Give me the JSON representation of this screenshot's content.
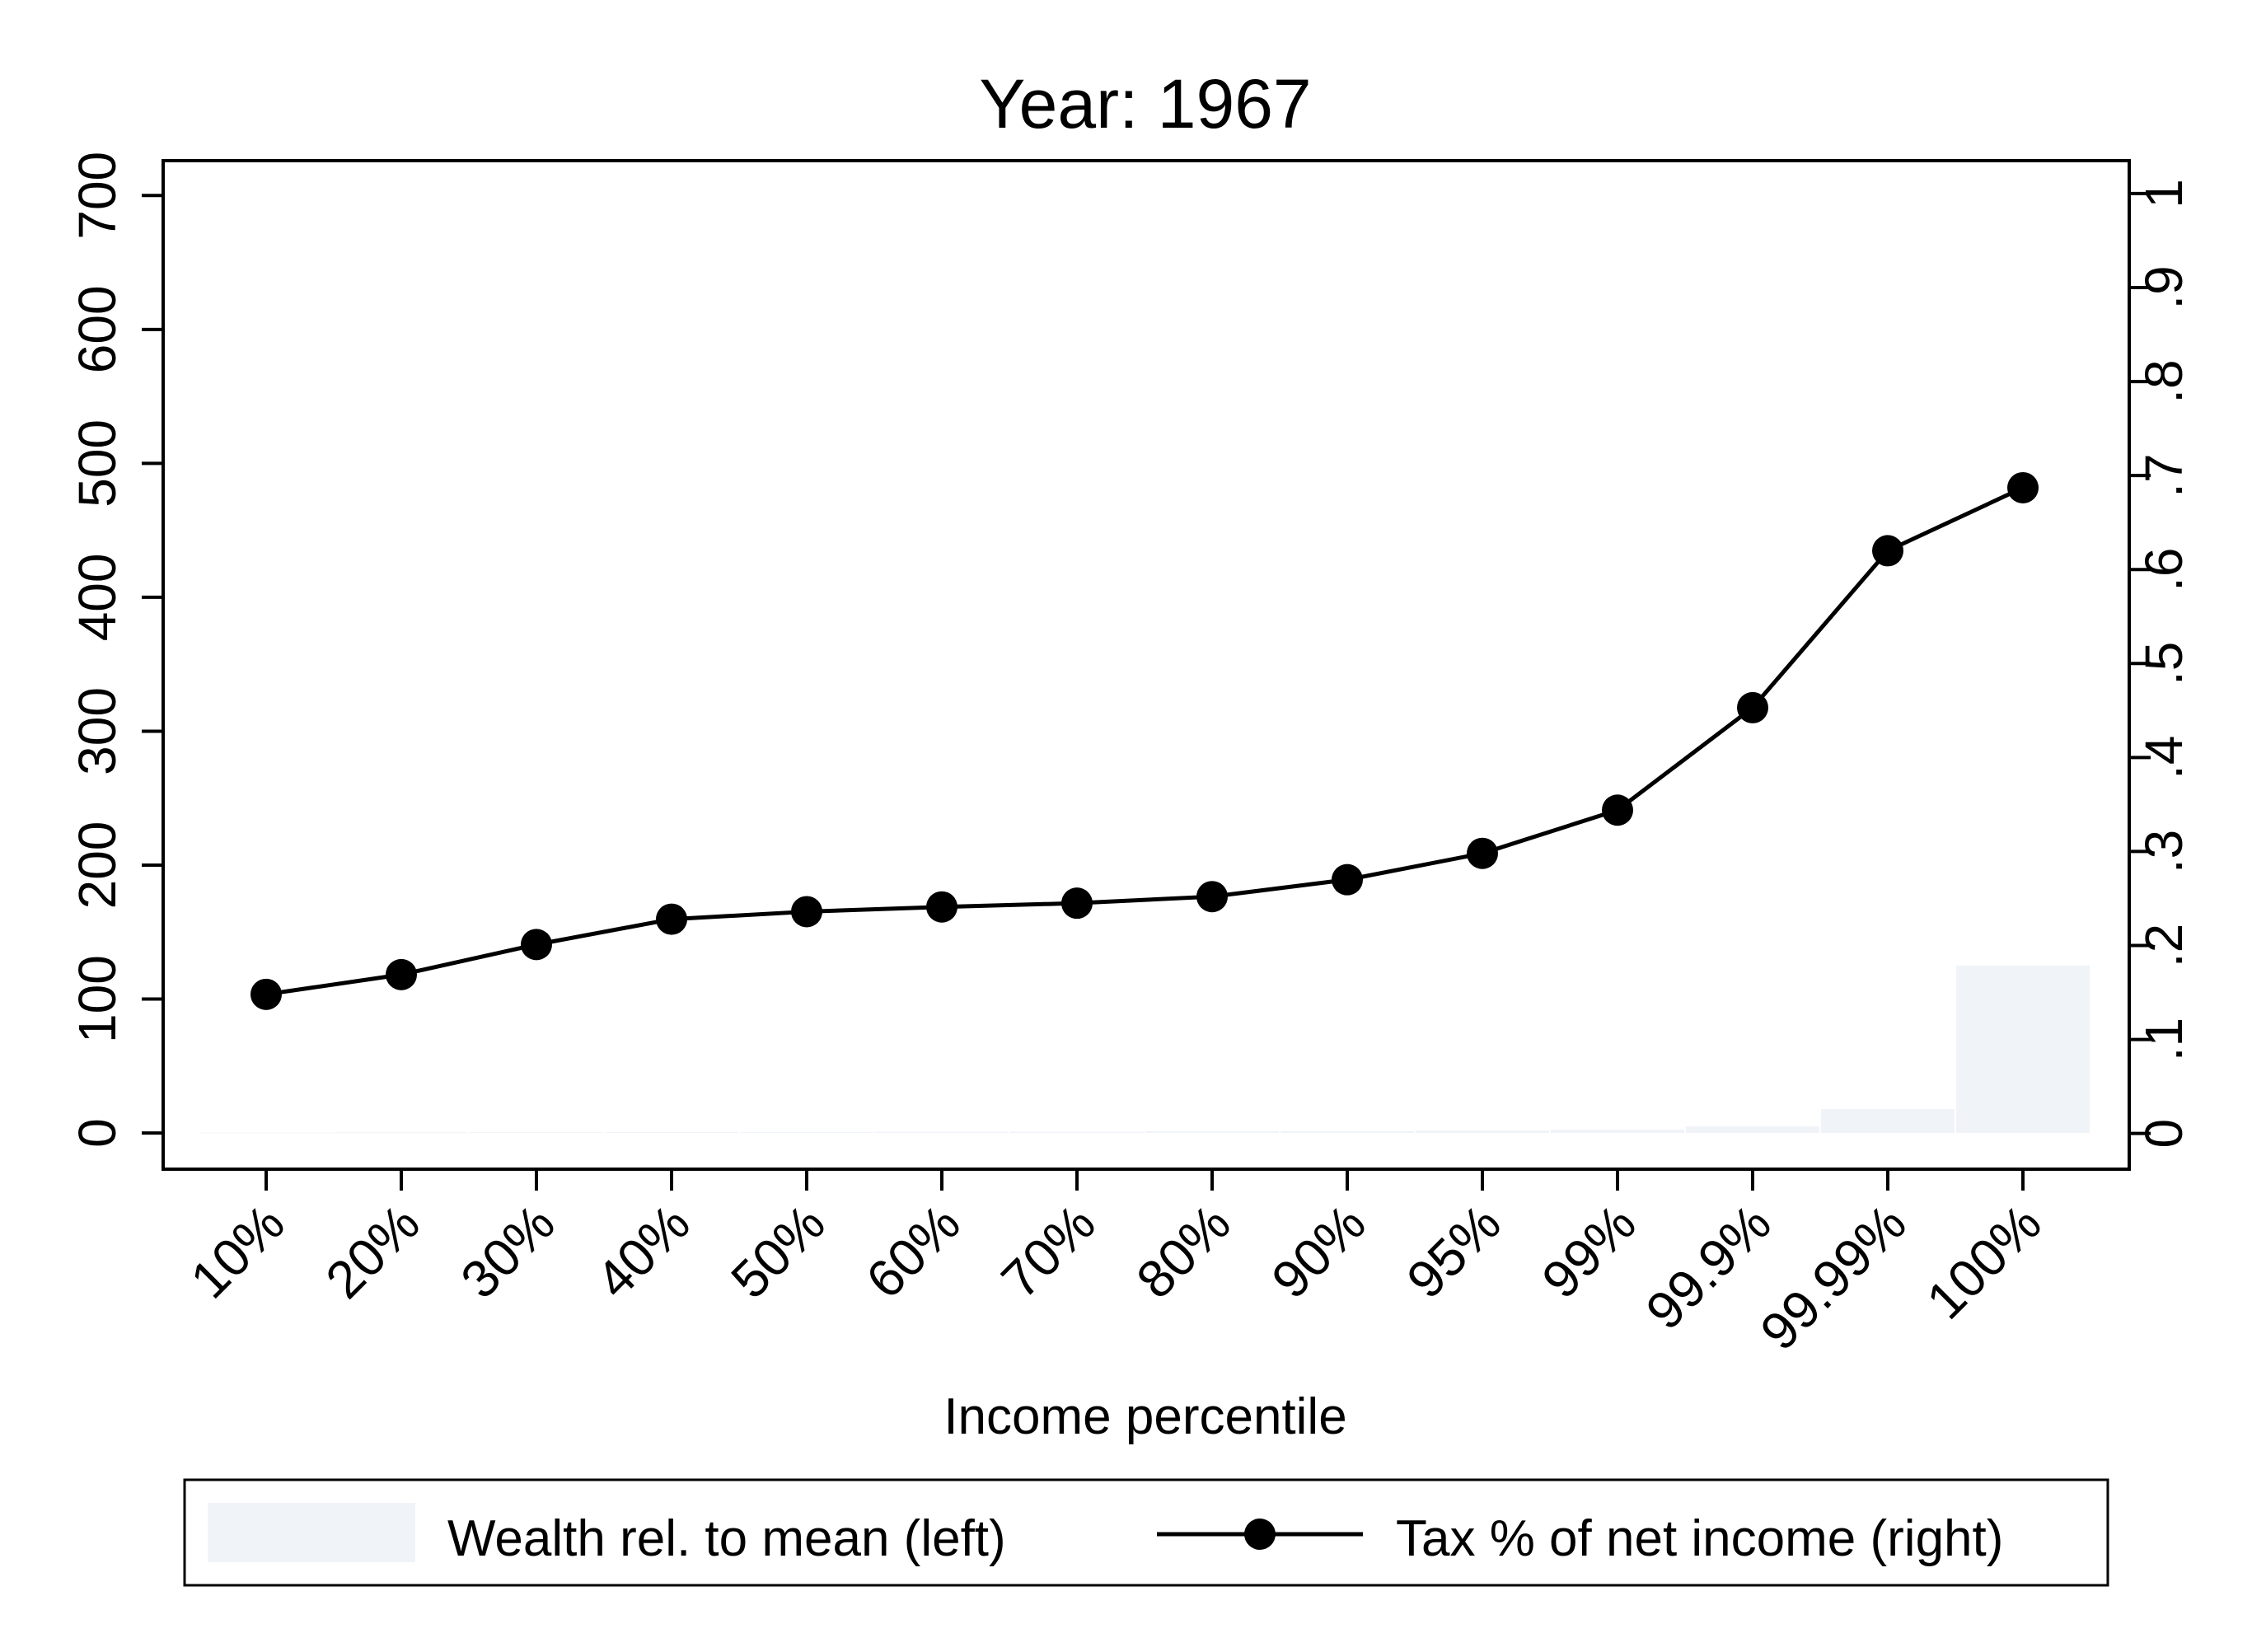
{
  "chart_data": {
    "type": "bar+line",
    "title": "Year: 1967",
    "xlabel": "Income percentile",
    "ylabel_left": "",
    "ylabel_right": "",
    "categories": [
      "10%",
      "20%",
      "30%",
      "40%",
      "50%",
      "60%",
      "70%",
      "80%",
      "90%",
      "95%",
      "99%",
      "99.9%",
      "99.99%",
      "100%"
    ],
    "y_left_ticks": [
      "0",
      "100",
      "200",
      "300",
      "400",
      "500",
      "600",
      "700"
    ],
    "y_right_ticks": [
      "0",
      ".1",
      ".2",
      ".3",
      ".4",
      ".5",
      ".6",
      ".7",
      ".8",
      ".9",
      "1"
    ],
    "y_left_lim": [
      -27,
      726
    ],
    "y_right_lim": [
      -0.038,
      1.035
    ],
    "grid": false,
    "legend_position": "bottom",
    "series": [
      {
        "name": "Wealth rel. to mean (left)",
        "axis": "left",
        "kind": "bar",
        "color": "#f0f3f7",
        "values": [
          0.3,
          0.5,
          0.6,
          0.7,
          0.8,
          0.9,
          1.0,
          1.2,
          1.4,
          1.8,
          2.5,
          5,
          18,
          125
        ]
      },
      {
        "name": "Tax % of net income (right)",
        "axis": "right",
        "kind": "line",
        "color": "#000000",
        "values": [
          0.148,
          0.169,
          0.201,
          0.228,
          0.236,
          0.241,
          0.245,
          0.252,
          0.27,
          0.298,
          0.344,
          0.453,
          0.62,
          0.687
        ]
      }
    ]
  }
}
